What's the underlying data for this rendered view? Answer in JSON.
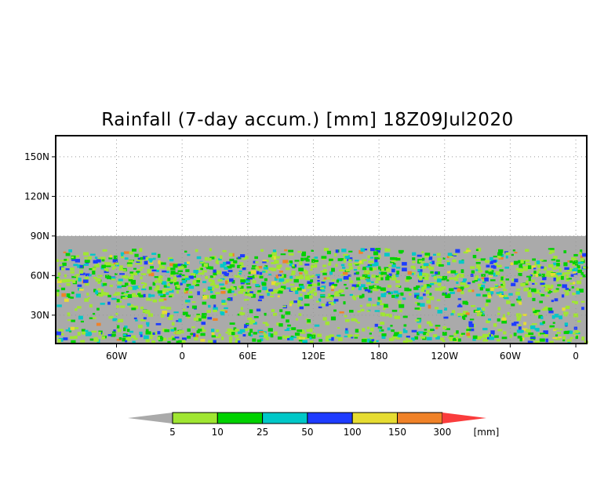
{
  "title": "Rainfall (7-day accum.) [mm] 18Z09Jul2020",
  "map": {
    "lat_ticks": [
      "150N",
      "120N",
      "90N",
      "60N",
      "30N"
    ],
    "lat_values": [
      150,
      120,
      90,
      60,
      30
    ],
    "lon_ticks": [
      "60W",
      "0",
      "60E",
      "120E",
      "180",
      "120W",
      "60W",
      "0"
    ],
    "lon_values": [
      -60,
      0,
      60,
      120,
      180,
      240,
      300,
      360
    ],
    "lon_range": [
      -115.6,
      370
    ],
    "lat_range": [
      8.5,
      166
    ],
    "data_lat_max": 90,
    "no_data_color": "#aaaaaa"
  },
  "colorbar": {
    "levels": [
      "5",
      "10",
      "25",
      "50",
      "100",
      "150",
      "300"
    ],
    "unit": "[mm]",
    "colors": [
      "#aaaaaa",
      "#a0e632",
      "#00d200",
      "#00c8c8",
      "#1e3cff",
      "#e6dc32",
      "#f08228",
      "#fa3c3c"
    ]
  }
}
